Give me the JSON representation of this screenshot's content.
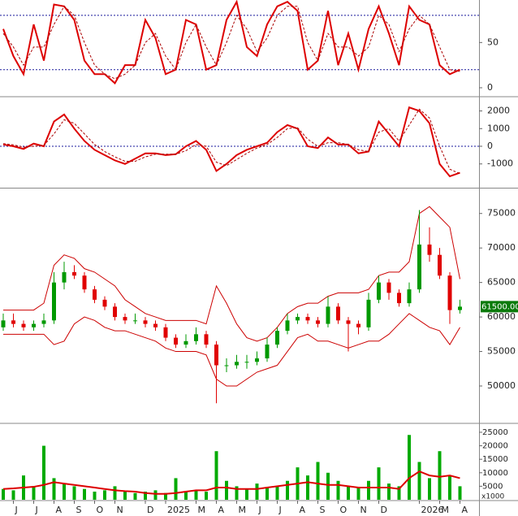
{
  "chart_data": [
    {
      "type": "line",
      "series": [
        {
          "color": "#dd0000",
          "style": "solid",
          "values": [
            65,
            35,
            15,
            70,
            30,
            92,
            90,
            75,
            30,
            15,
            15,
            5,
            25,
            25,
            75,
            55,
            15,
            20,
            75,
            70,
            20,
            25,
            75,
            95,
            45,
            35,
            70,
            90,
            95,
            85,
            20,
            30,
            85,
            25,
            60,
            20,
            65,
            90,
            60,
            25,
            90,
            75,
            70,
            25,
            15,
            20
          ]
        },
        {
          "color": "#aa0000",
          "style": "dashed",
          "values": [
            60,
            45,
            25,
            45,
            45,
            70,
            90,
            80,
            50,
            25,
            15,
            10,
            15,
            25,
            50,
            60,
            35,
            20,
            50,
            70,
            45,
            25,
            50,
            80,
            65,
            40,
            55,
            80,
            90,
            90,
            50,
            30,
            60,
            45,
            45,
            35,
            45,
            80,
            70,
            40,
            65,
            80,
            70,
            45,
            20,
            18
          ]
        }
      ],
      "ylim": [
        -9,
        97
      ],
      "yticks": [
        0,
        50
      ],
      "reference_lines": [
        20,
        80
      ],
      "reference_color": "#1a1a9c"
    },
    {
      "type": "line",
      "series": [
        {
          "color": "#dd0000",
          "style": "solid",
          "values": [
            100,
            0,
            -150,
            150,
            0,
            1400,
            1800,
            1000,
            300,
            -200,
            -500,
            -800,
            -1000,
            -700,
            -400,
            -400,
            -500,
            -450,
            0,
            300,
            -200,
            -1400,
            -1000,
            -500,
            -200,
            0,
            200,
            800,
            1200,
            1000,
            0,
            -100,
            500,
            100,
            100,
            -400,
            -300,
            1400,
            700,
            0,
            2200,
            2000,
            1300,
            -1000,
            -1700,
            -1500
          ]
        },
        {
          "color": "#aa0000",
          "style": "dashed",
          "values": [
            150,
            80,
            -50,
            0,
            50,
            700,
            1500,
            1300,
            700,
            100,
            -300,
            -600,
            -850,
            -850,
            -600,
            -450,
            -450,
            -450,
            -250,
            100,
            0,
            -900,
            -1100,
            -750,
            -400,
            -100,
            100,
            500,
            1000,
            1050,
            400,
            0,
            200,
            200,
            100,
            -200,
            -300,
            800,
            1000,
            300,
            1200,
            2100,
            1600,
            0,
            -1300,
            -1550
          ]
        }
      ],
      "ylim": [
        -2300,
        2760
      ],
      "yticks": [
        -1000,
        0,
        1000,
        2000
      ],
      "reference_lines": [
        0
      ],
      "reference_color": "#1a1a9c"
    },
    {
      "type": "candlestick",
      "open": [
        58500,
        59500,
        59000,
        58500,
        59000,
        59500,
        65000,
        66500,
        66000,
        64000,
        62500,
        61500,
        60000,
        59500,
        59500,
        59000,
        58500,
        57000,
        56000,
        56500,
        57500,
        56000,
        53000,
        53000,
        53500,
        53500,
        54000,
        56000,
        58000,
        59500,
        60000,
        59500,
        59000,
        61500,
        59500,
        59000,
        58500,
        62500,
        65000,
        63500,
        62000,
        64000,
        70500,
        69000,
        66000,
        61000
      ],
      "high": [
        60500,
        60500,
        59500,
        59500,
        60500,
        66500,
        68000,
        67500,
        66500,
        64500,
        63000,
        62000,
        60500,
        60500,
        60000,
        59500,
        59000,
        57500,
        57500,
        58500,
        58000,
        56500,
        54000,
        54500,
        54500,
        55000,
        57000,
        58500,
        60500,
        60500,
        60500,
        60000,
        63000,
        62000,
        60000,
        59500,
        63500,
        66000,
        65500,
        64000,
        65000,
        75500,
        73000,
        70000,
        66500,
        62500
      ],
      "low": [
        58000,
        58500,
        58000,
        58000,
        58500,
        59000,
        64000,
        65500,
        63500,
        62000,
        61000,
        59500,
        59000,
        59000,
        58500,
        58000,
        56500,
        55500,
        55500,
        56000,
        55500,
        47500,
        52000,
        52500,
        52500,
        53000,
        53500,
        55500,
        57500,
        59000,
        59000,
        58500,
        58500,
        59000,
        55000,
        57500,
        58000,
        62000,
        62500,
        61500,
        61500,
        63500,
        68000,
        65500,
        59000,
        60500
      ],
      "close": [
        59500,
        59000,
        58500,
        59000,
        59500,
        65000,
        66500,
        66000,
        64000,
        62500,
        61500,
        60000,
        59500,
        59500,
        59000,
        58500,
        57000,
        56000,
        56500,
        57500,
        56000,
        53000,
        53000,
        53500,
        53500,
        54000,
        56000,
        58000,
        59500,
        60000,
        59500,
        59000,
        61500,
        59500,
        59000,
        58500,
        62500,
        65000,
        63500,
        62000,
        64000,
        70500,
        69000,
        66000,
        61000,
        61500
      ],
      "up_color": "#009900",
      "down_color": "#e00000",
      "bands": [
        {
          "color": "#cc0000",
          "values": [
            61000,
            61000,
            61000,
            61000,
            62000,
            67500,
            69000,
            68500,
            67000,
            66500,
            65500,
            64500,
            62500,
            61500,
            60500,
            60000,
            59500,
            59500,
            59500,
            59500,
            59000,
            64500,
            62000,
            59000,
            57000,
            56500,
            57000,
            58500,
            60500,
            61500,
            62000,
            62000,
            63000,
            63500,
            63500,
            63500,
            64000,
            66000,
            66500,
            66500,
            68000,
            75000,
            76000,
            74500,
            73000,
            65500
          ]
        },
        {
          "color": "#cc0000",
          "values": [
            57500,
            57500,
            57500,
            57500,
            57500,
            56000,
            56500,
            59000,
            60000,
            59500,
            58500,
            58000,
            58000,
            57500,
            57000,
            56500,
            55500,
            55000,
            55000,
            55000,
            54500,
            51000,
            50000,
            50000,
            51000,
            52000,
            52500,
            53000,
            55000,
            57000,
            57500,
            56500,
            56500,
            56000,
            55500,
            56000,
            56500,
            56500,
            57500,
            59000,
            60500,
            59500,
            58500,
            58000,
            56000,
            58500
          ]
        }
      ],
      "ylim": [
        44700,
        78500
      ],
      "yticks": [
        50000,
        55000,
        60000,
        65000,
        70000,
        75000
      ],
      "last_price": {
        "value": 61500,
        "label": "61500.00"
      }
    },
    {
      "type": "bar",
      "values": [
        4000,
        3500,
        9000,
        5000,
        20000,
        8000,
        6000,
        5000,
        4000,
        3000,
        3500,
        5000,
        3000,
        2500,
        3000,
        3500,
        2500,
        8000,
        3000,
        3500,
        3000,
        18000,
        7000,
        5000,
        4000,
        6000,
        4500,
        5000,
        7000,
        12000,
        9000,
        14000,
        10000,
        7000,
        5000,
        4500,
        7000,
        12000,
        6000,
        5000,
        24000,
        14000,
        8000,
        18000,
        9000,
        5000
      ],
      "color": "#00aa00",
      "series": [
        {
          "color": "#dd0000",
          "style": "solid",
          "values": [
            4000,
            4200,
            4500,
            4800,
            5500,
            6500,
            6000,
            5500,
            5000,
            4500,
            4000,
            3500,
            3200,
            3000,
            2500,
            2200,
            2200,
            2500,
            3000,
            3500,
            3500,
            4500,
            4500,
            4000,
            4000,
            4000,
            4500,
            5000,
            5500,
            6000,
            6500,
            6000,
            5500,
            5500,
            5000,
            4500,
            4500,
            4500,
            4500,
            4000,
            8000,
            10500,
            9000,
            8500,
            9000,
            8000
          ]
        }
      ],
      "ylim": [
        0,
        28000
      ],
      "yticks": [
        5000,
        10000,
        15000,
        20000,
        25000
      ],
      "unit_label": "x1000",
      "categories": [
        null,
        "J",
        null,
        "J",
        null,
        "A",
        null,
        "S",
        null,
        "O",
        null,
        "N",
        null,
        null,
        "D",
        null,
        "2025",
        null,
        null,
        "M",
        null,
        "A",
        null,
        "M",
        null,
        "J",
        null,
        "J",
        null,
        "A",
        null,
        "S",
        null,
        "O",
        null,
        "N",
        null,
        "D",
        null,
        null,
        null,
        "2026",
        null,
        "M",
        null,
        "A"
      ]
    }
  ]
}
